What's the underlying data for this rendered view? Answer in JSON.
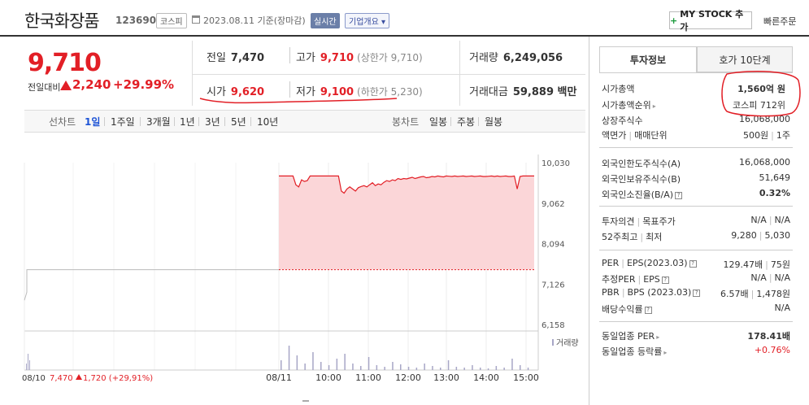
{
  "header": {
    "company": "한국화장품",
    "code": "123690",
    "market": "코스피",
    "date": "2023.08.11 기준(장마감)",
    "realtime": "실시간",
    "company_info": "기업개요",
    "mystock": "MY STOCK 추가",
    "quick_order": "빠른주문"
  },
  "price": {
    "current": "9,710",
    "diff_label": "전일대비",
    "diff": "2,240",
    "rate": "+29.99%"
  },
  "stats": {
    "prev_label": "전일",
    "prev": "7,470",
    "high_label": "고가",
    "high": "9,710",
    "high_sub": "(상한가 9,710)",
    "volume_label": "거래량",
    "volume": "6,249,056",
    "open_label": "시가",
    "open": "9,620",
    "low_label": "저가",
    "low": "9,100",
    "low_sub": "(하한가 5,230)",
    "amount_label": "거래대금",
    "amount": "59,889 백만"
  },
  "periods": {
    "line_chart": "선차트",
    "items": [
      "1일",
      "1주일",
      "3개월",
      "1년",
      "3년",
      "5년",
      "10년"
    ],
    "active": "1일",
    "candle_chart": "봉차트",
    "candle_items": [
      "일봉",
      "주봉",
      "월봉"
    ]
  },
  "colors": {
    "up": "#e21f26",
    "down": "#1e54d6",
    "area": "#fbd6d8",
    "volume": "#a7a6c6"
  },
  "chart_data": {
    "type": "line",
    "y_ticks": [
      "10,030",
      "9,062",
      "8,094",
      "7,126",
      "6,158"
    ],
    "ylim": [
      6158,
      10030
    ],
    "prev_close": 7470,
    "prev_close_early": 7126,
    "x_ticks": [
      "08/11",
      "10:00",
      "11:00",
      "12:00",
      "13:00",
      "14:00",
      "15:00"
    ],
    "prev_day_label": "08/10",
    "prev_day_price": "7,470",
    "prev_day_change": "1,720",
    "prev_day_rate": "(+29,91%)",
    "volume_label": "거래량",
    "series": [
      {
        "values": [
          9710,
          9710,
          9710,
          9710,
          9710,
          9710,
          9500,
          9450,
          9620,
          9580,
          9600,
          9710,
          9710,
          9710,
          9710,
          9710,
          9710,
          9710,
          9710,
          9710,
          9710,
          9710,
          9350,
          9300,
          9400,
          9450,
          9400,
          9350,
          9430,
          9460,
          9480,
          9450,
          9500,
          9550,
          9480,
          9520,
          9500,
          9560,
          9600,
          9580,
          9620,
          9600,
          9650,
          9630,
          9650,
          9640,
          9660,
          9680,
          9650,
          9670,
          9690,
          9700,
          9670,
          9680,
          9700,
          9690,
          9710,
          9700,
          9690,
          9710,
          9705,
          9700,
          9710,
          9700,
          9705,
          9710,
          9700,
          9705,
          9710,
          9700,
          9705,
          9710,
          9700,
          9700,
          9705,
          9710,
          9700,
          9710,
          9700,
          9705,
          9710,
          9700,
          9700,
          9710,
          9400,
          9700,
          9710,
          9710,
          9710,
          9710,
          9710
        ]
      }
    ]
  },
  "panel": {
    "tab_active": "투자정보",
    "tab_other": "호가 10단계",
    "market_cap_label": "시가총액",
    "market_cap": "1,560억 원",
    "market_cap_rank_label": "시가총액순위",
    "market_cap_rank": "코스피 712위",
    "shares_label": "상장주식수",
    "shares": "16,068,000",
    "par_label": "액면가",
    "unit_label": "매매단위",
    "par_val": "500원",
    "unit_val": "1주",
    "foreign_limit_label": "외국인한도주식수(A)",
    "foreign_limit": "16,068,000",
    "foreign_hold_label": "외국인보유주식수(B)",
    "foreign_hold": "51,649",
    "foreign_ratio_label": "외국인소진율(B/A)",
    "foreign_ratio": "0.32%",
    "opinion_label": "투자의견",
    "target_label": "목표주가",
    "opinion_val": "N/A",
    "target_val": "N/A",
    "w52_label": "52주최고",
    "w52_low_label": "최저",
    "w52_high": "9,280",
    "w52_low": "5,030",
    "per_label": "PER",
    "eps_label": "EPS(2023.03)",
    "per_val": "129.47배",
    "eps_val": "75원",
    "eper_label": "추정PER",
    "eeps_label": "EPS",
    "eper_val": "N/A",
    "eeps_val": "N/A",
    "pbr_label": "PBR",
    "bps_label": "BPS (2023.03)",
    "pbr_val": "6.57배",
    "bps_val": "1,478원",
    "div_label": "배당수익률",
    "div_val": "N/A",
    "ind_per_label": "동일업종 PER",
    "ind_per": "178.41배",
    "ind_rate_label": "동일업종 등락률",
    "ind_rate": "+0.76%"
  }
}
